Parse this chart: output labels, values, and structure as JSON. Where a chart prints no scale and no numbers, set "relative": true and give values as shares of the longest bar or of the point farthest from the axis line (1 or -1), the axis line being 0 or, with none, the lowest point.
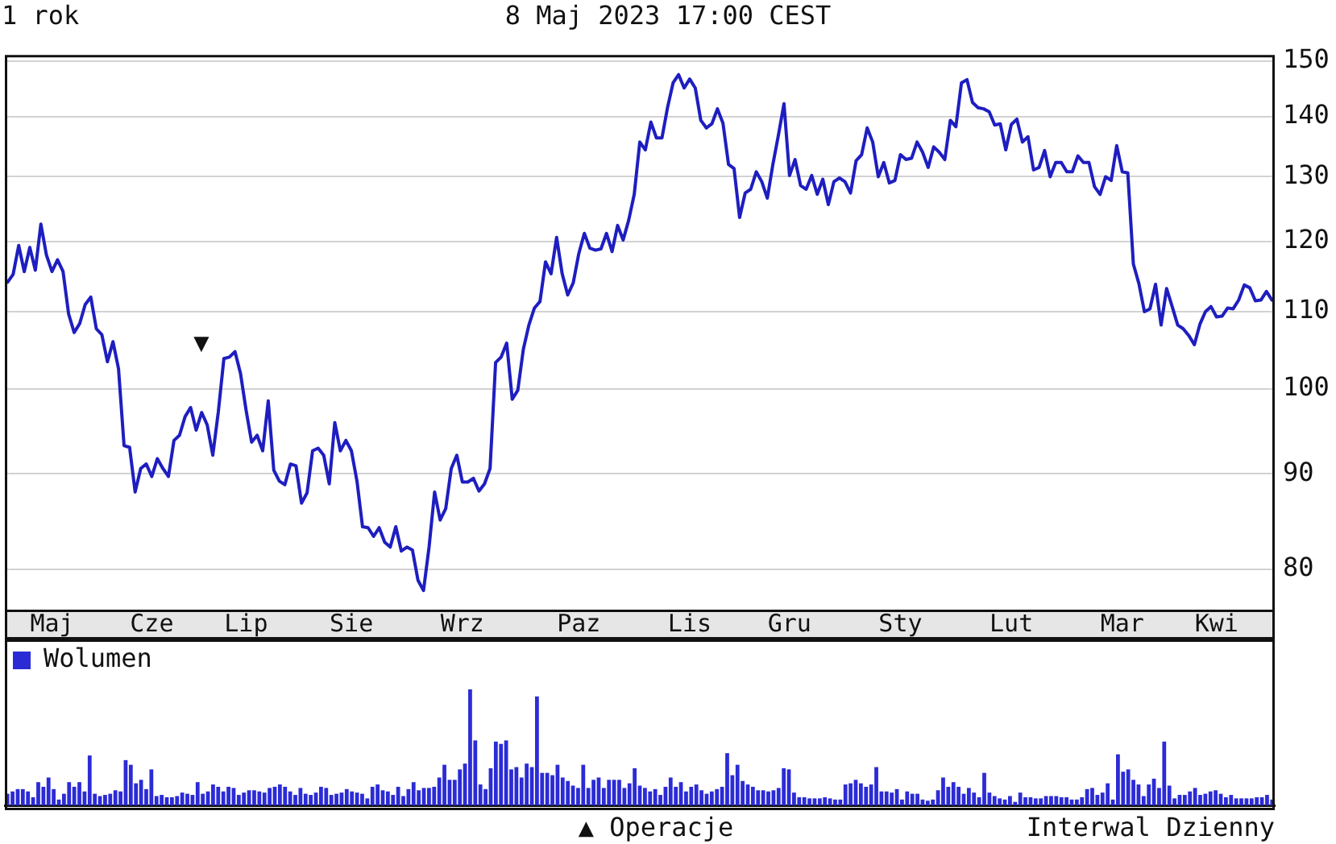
{
  "chart_data": [
    {
      "type": "line",
      "title": "1 rok",
      "subtitle": "8 Maj 2023 17:00 CEST",
      "categories": [
        null,
        null,
        null,
        null,
        null,
        null,
        null,
        null,
        "Maj",
        null,
        null,
        null,
        null,
        null,
        null,
        null,
        null,
        null,
        null,
        null,
        null,
        null,
        null,
        null,
        null,
        null,
        "Cze",
        null,
        null,
        null,
        null,
        null,
        null,
        null,
        null,
        null,
        null,
        null,
        null,
        null,
        null,
        null,
        null,
        "Lip",
        null,
        null,
        null,
        null,
        null,
        null,
        null,
        null,
        null,
        null,
        null,
        null,
        null,
        null,
        null,
        null,
        null,
        null,
        "Sie",
        null,
        null,
        null,
        null,
        null,
        null,
        null,
        null,
        null,
        null,
        null,
        null,
        null,
        null,
        null,
        null,
        null,
        null,
        null,
        "Wrz",
        null,
        null,
        null,
        null,
        null,
        null,
        null,
        null,
        null,
        null,
        null,
        null,
        null,
        null,
        null,
        null,
        null,
        null,
        null,
        null,
        "Paz",
        null,
        null,
        null,
        null,
        null,
        null,
        null,
        null,
        null,
        null,
        null,
        null,
        null,
        null,
        null,
        null,
        null,
        null,
        null,
        "Lis",
        null,
        null,
        null,
        null,
        null,
        null,
        null,
        null,
        null,
        null,
        null,
        null,
        null,
        null,
        null,
        null,
        null,
        "Gru",
        null,
        null,
        null,
        null,
        null,
        null,
        null,
        null,
        null,
        null,
        null,
        null,
        null,
        null,
        null,
        null,
        null,
        null,
        null,
        "Sty",
        null,
        null,
        null,
        null,
        null,
        null,
        null,
        null,
        null,
        null,
        null,
        null,
        null,
        null,
        null,
        null,
        null,
        null,
        null,
        "Lut",
        null,
        null,
        null,
        null,
        null,
        null,
        null,
        null,
        null,
        null,
        null,
        null,
        null,
        null,
        null,
        null,
        null,
        null,
        null,
        "Mar",
        null,
        null,
        null,
        null,
        null,
        null,
        null,
        null,
        null,
        null,
        null,
        null,
        null,
        null,
        null,
        null,
        "Kwi",
        null,
        null,
        null,
        null,
        null,
        null,
        null,
        null,
        null,
        null
      ],
      "series": [
        {
          "color": "#1e1ec0",
          "values": [
            114.1,
            115.2,
            119.4,
            115.6,
            119.1,
            115.8,
            122.6,
            118.0,
            115.6,
            117.3,
            115.6,
            109.7,
            107.2,
            108.4,
            111.0,
            112.0,
            107.7,
            106.9,
            103.4,
            106.0,
            102.5,
            93.2,
            93.0,
            88.0,
            90.6,
            91.1,
            89.7,
            91.7,
            90.6,
            89.7,
            93.8,
            94.4,
            96.6,
            97.7,
            95.0,
            97.1,
            95.6,
            92.1,
            97.2,
            103.8,
            104.0,
            104.7,
            101.9,
            97.4,
            93.6,
            94.4,
            92.6,
            98.5,
            90.4,
            89.2,
            88.8,
            91.1,
            90.9,
            86.8,
            87.9,
            92.6,
            92.9,
            92.1,
            88.9,
            95.9,
            92.6,
            93.8,
            92.6,
            89.2,
            84.3,
            84.2,
            83.3,
            84.2,
            82.7,
            82.2,
            84.3,
            81.8,
            82.2,
            81.9,
            78.9,
            77.9,
            82.2,
            88.0,
            85.0,
            86.2,
            90.6,
            92.1,
            89.1,
            89.1,
            89.5,
            88.1,
            88.9,
            90.6,
            103.3,
            104.0,
            105.8,
            98.7,
            99.8,
            105.0,
            108.2,
            110.5,
            111.4,
            117.0,
            115.3,
            120.6,
            115.3,
            112.3,
            114.0,
            118.2,
            121.2,
            119.0,
            118.7,
            118.9,
            121.2,
            118.5,
            122.4,
            120.2,
            123.2,
            127.2,
            135.7,
            134.4,
            139.1,
            136.4,
            136.4,
            141.6,
            146.0,
            147.5,
            145.1,
            146.7,
            145.1,
            139.4,
            138.1,
            138.8,
            141.4,
            138.9,
            132.0,
            131.3,
            123.6,
            127.4,
            128.0,
            130.8,
            129.2,
            126.6,
            132.0,
            136.9,
            142.3,
            130.2,
            132.8,
            128.6,
            128.0,
            130.2,
            127.2,
            129.6,
            125.6,
            129.2,
            129.8,
            129.2,
            127.4,
            132.6,
            133.6,
            138.1,
            135.7,
            130.0,
            132.3,
            129.0,
            129.4,
            133.6,
            132.8,
            133.0,
            135.7,
            134.0,
            131.5,
            134.9,
            134.0,
            132.8,
            139.4,
            138.3,
            146.0,
            146.6,
            142.5,
            141.6,
            141.4,
            140.9,
            138.6,
            138.8,
            134.4,
            138.7,
            139.6,
            135.7,
            136.6,
            131.1,
            131.5,
            134.3,
            130.0,
            132.3,
            132.3,
            130.8,
            130.8,
            133.4,
            132.3,
            132.3,
            128.4,
            127.2,
            130.0,
            129.4,
            135.1,
            130.8,
            130.6,
            116.7,
            113.9,
            110.0,
            110.4,
            113.8,
            108.2,
            113.2,
            110.7,
            108.2,
            107.7,
            106.8,
            105.6,
            108.3,
            110.0,
            110.7,
            109.3,
            109.4,
            110.5,
            110.4,
            111.6,
            113.7,
            113.3,
            111.5,
            111.6,
            112.8,
            111.6
          ]
        }
      ],
      "ylim": [
        76,
        151
      ],
      "yticks": [
        80,
        90,
        100,
        110,
        120,
        130,
        140,
        150
      ],
      "log": true,
      "grid": "y",
      "annotations": [
        "▼"
      ]
    },
    {
      "type": "bar",
      "categories": [
        null,
        null,
        null,
        null,
        null,
        null,
        null,
        null,
        null,
        null,
        null,
        null,
        null,
        null,
        null,
        null,
        null,
        null,
        null,
        null,
        null,
        null,
        null,
        null,
        null,
        null,
        null,
        null,
        null,
        null,
        null,
        null,
        null,
        null,
        null,
        null,
        null,
        null,
        null,
        null,
        null,
        null,
        null,
        null,
        null,
        null,
        null,
        null,
        null,
        null,
        null,
        null,
        null,
        null,
        null,
        null,
        null,
        null,
        null,
        null,
        null,
        null,
        null,
        null,
        null,
        null,
        null,
        null,
        null,
        null,
        null,
        null,
        null,
        null,
        null,
        null,
        null,
        null,
        null,
        null,
        null,
        null,
        null,
        null,
        null,
        null,
        null,
        null,
        null,
        null,
        null,
        null,
        null,
        null,
        null,
        null,
        null,
        null,
        null,
        null,
        null,
        null,
        null,
        null,
        null,
        null,
        null,
        null,
        null,
        null,
        null,
        null,
        null,
        null,
        null,
        null,
        null,
        null,
        null,
        null,
        null,
        null,
        null,
        null,
        null,
        null,
        null,
        null,
        null,
        null,
        null,
        null,
        null,
        null,
        null,
        null,
        null,
        null,
        null,
        null,
        null,
        null,
        null,
        null,
        null,
        null,
        null,
        null,
        null,
        null,
        null,
        null,
        null,
        null,
        null,
        null,
        null,
        null,
        null,
        null,
        null,
        null,
        null,
        null,
        null,
        null,
        null,
        null,
        null,
        null,
        null,
        null,
        null,
        null,
        null,
        null,
        null,
        null,
        null,
        null,
        null,
        null,
        null,
        null,
        null,
        null,
        null,
        null,
        null,
        null,
        null,
        null,
        null,
        null,
        null,
        null,
        null,
        null,
        null,
        null,
        null,
        null,
        null,
        null,
        null,
        null,
        null,
        null,
        null,
        null,
        null,
        null,
        null,
        null,
        null,
        null,
        null,
        null,
        null,
        null,
        null,
        null,
        null,
        null,
        null,
        null,
        null,
        null,
        null,
        null,
        null,
        null,
        null,
        null,
        null,
        null,
        null,
        null,
        null,
        null,
        null,
        null,
        null,
        null,
        null,
        null,
        null
      ],
      "series": [
        {
          "name": "Wolumen",
          "color": "#2b2bd6",
          "values": [
            0.1,
            0.12,
            0.14,
            0.14,
            0.12,
            0.07,
            0.2,
            0.16,
            0.24,
            0.14,
            0.05,
            0.1,
            0.2,
            0.16,
            0.2,
            0.12,
            0.43,
            0.1,
            0.08,
            0.09,
            0.1,
            0.13,
            0.12,
            0.39,
            0.35,
            0.19,
            0.22,
            0.14,
            0.31,
            0.08,
            0.09,
            0.07,
            0.07,
            0.08,
            0.11,
            0.1,
            0.09,
            0.2,
            0.1,
            0.12,
            0.18,
            0.16,
            0.12,
            0.16,
            0.15,
            0.09,
            0.11,
            0.13,
            0.13,
            0.12,
            0.11,
            0.15,
            0.16,
            0.18,
            0.16,
            0.12,
            0.09,
            0.15,
            0.1,
            0.09,
            0.11,
            0.16,
            0.15,
            0.09,
            0.1,
            0.11,
            0.14,
            0.12,
            0.11,
            0.1,
            0.06,
            0.16,
            0.18,
            0.13,
            0.12,
            0.09,
            0.16,
            0.08,
            0.14,
            0.2,
            0.13,
            0.15,
            0.15,
            0.16,
            0.24,
            0.35,
            0.22,
            0.22,
            0.31,
            0.36,
            1,
            0.56,
            0.18,
            0.14,
            0.32,
            0.55,
            0.53,
            0.56,
            0.31,
            0.33,
            0.24,
            0.36,
            0.33,
            0.94,
            0.28,
            0.28,
            0.26,
            0.35,
            0.24,
            0.21,
            0.17,
            0.15,
            0.35,
            0.15,
            0.22,
            0.24,
            0.15,
            0.22,
            0.22,
            0.22,
            0.15,
            0.19,
            0.32,
            0.17,
            0.15,
            0.12,
            0.14,
            0.09,
            0.16,
            0.24,
            0.16,
            0.2,
            0.12,
            0.16,
            0.18,
            0.13,
            0.1,
            0.12,
            0.14,
            0.16,
            0.45,
            0.26,
            0.35,
            0.21,
            0.18,
            0.16,
            0.13,
            0.13,
            0.12,
            0.13,
            0.15,
            0.32,
            0.31,
            0.11,
            0.07,
            0.07,
            0.06,
            0.06,
            0.06,
            0.07,
            0.06,
            0.05,
            0.05,
            0.18,
            0.19,
            0.22,
            0.19,
            0.16,
            0.18,
            0.33,
            0.12,
            0.12,
            0.11,
            0.14,
            0.05,
            0.12,
            0.1,
            0.1,
            0.05,
            0.04,
            0.05,
            0.13,
            0.24,
            0.16,
            0.2,
            0.16,
            0.1,
            0.15,
            0.11,
            0.07,
            0.28,
            0.11,
            0.08,
            0.06,
            0.05,
            0.08,
            0.03,
            0.11,
            0.07,
            0.07,
            0.06,
            0.06,
            0.08,
            0.08,
            0.08,
            0.07,
            0.07,
            0.05,
            0.05,
            0.07,
            0.14,
            0.15,
            0.09,
            0.11,
            0.19,
            0.05,
            0.44,
            0.29,
            0.31,
            0.22,
            0.18,
            0.08,
            0.18,
            0.23,
            0.15,
            0.55,
            0.17,
            0.06,
            0.09,
            0.09,
            0.12,
            0.15,
            0.09,
            0.1,
            0.12,
            0.13,
            0.1,
            0.07,
            0.09,
            0.06,
            0.06,
            0.06,
            0.06,
            0.07,
            0.07,
            0.09,
            0.05
          ]
        }
      ],
      "relative": true,
      "legend": "top left",
      "annotations": [
        "▲ Operacje",
        "Interwal Dzienny"
      ]
    }
  ]
}
